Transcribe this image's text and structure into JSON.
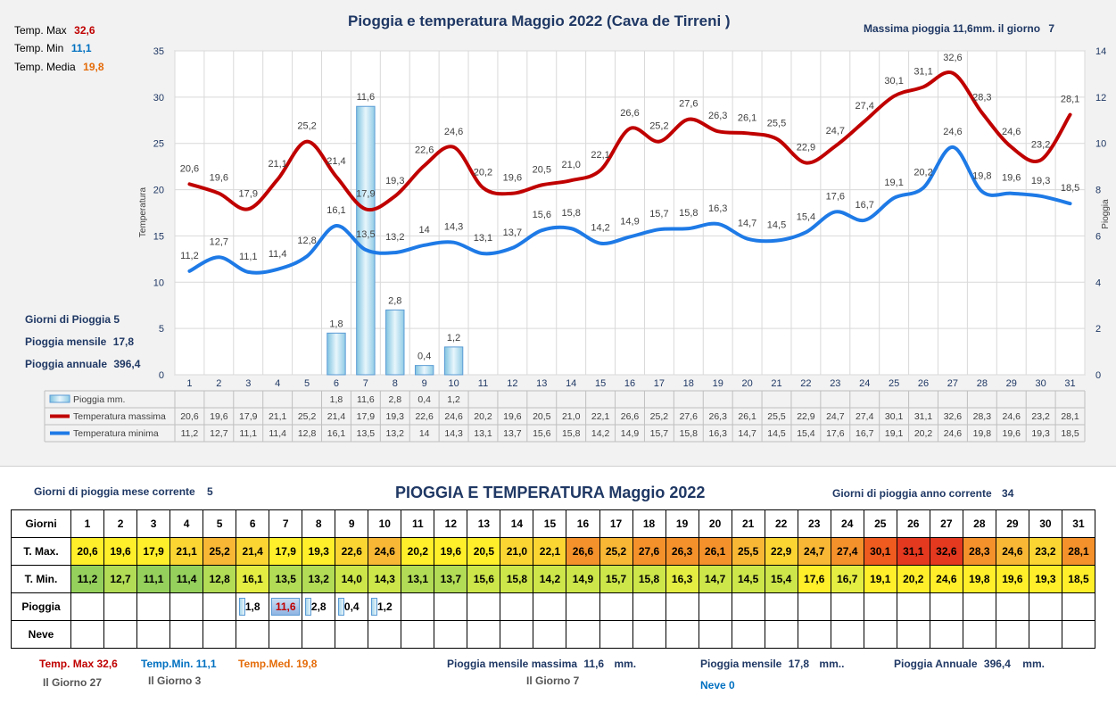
{
  "chart_title": "Pioggia e temperatura Maggio 2022 (Cava de Tirreni )",
  "max_rain_label": "Massima pioggia  11,6mm. il giorno",
  "max_rain_day": "7",
  "top_stats": {
    "max_label": "Temp. Max",
    "max_value": "32,6",
    "min_label": "Temp. Min",
    "min_value": "11,1",
    "med_label": "Temp. Media",
    "med_value": "19,8"
  },
  "left_stats": {
    "rain_days_label": "Giorni di Pioggia",
    "rain_days": "5",
    "monthly_label": "Pioggia mensile",
    "monthly": "17,8",
    "annual_label": "Pioggia annuale",
    "annual": "396,4"
  },
  "colors": {
    "max_line": "#c00000",
    "min_line": "#1e7ae6",
    "title_navy": "#1f3864"
  },
  "chart_data": {
    "type": "line",
    "x": [
      1,
      2,
      3,
      4,
      5,
      6,
      7,
      8,
      9,
      10,
      11,
      12,
      13,
      14,
      15,
      16,
      17,
      18,
      19,
      20,
      21,
      22,
      23,
      24,
      25,
      26,
      27,
      28,
      29,
      30,
      31
    ],
    "ylabel": "Temperatura",
    "y2label": "Pioggia",
    "ylim": [
      0,
      35
    ],
    "y2lim": [
      0,
      14
    ],
    "yticks": [
      "0",
      "5",
      "10",
      "15",
      "20",
      "25",
      "30",
      "35"
    ],
    "y2ticks": [
      "0",
      "2",
      "4",
      "6",
      "8",
      "10",
      "12",
      "14"
    ],
    "grid": true,
    "series": [
      {
        "name": "Pioggia mm.",
        "type": "bar",
        "axis": "right",
        "values": [
          null,
          null,
          null,
          null,
          null,
          1.8,
          11.6,
          2.8,
          0.4,
          1.2,
          null,
          null,
          null,
          null,
          null,
          null,
          null,
          null,
          null,
          null,
          null,
          null,
          null,
          null,
          null,
          null,
          null,
          null,
          null,
          null,
          null
        ],
        "labels": [
          "",
          "",
          "",
          "",
          "",
          "1,8",
          "11,6",
          "2,8",
          "0,4",
          "1,2",
          "",
          "",
          "",
          "",
          "",
          "",
          "",
          "",
          "",
          "",
          "",
          "",
          "",
          "",
          "",
          "",
          "",
          "",
          "",
          "",
          ""
        ]
      },
      {
        "name": "Temperatura massima",
        "type": "line",
        "axis": "left",
        "values": [
          20.6,
          19.6,
          17.9,
          21.1,
          25.2,
          21.4,
          17.9,
          19.3,
          22.6,
          24.6,
          20.2,
          19.6,
          20.5,
          21.0,
          22.1,
          26.6,
          25.2,
          27.6,
          26.3,
          26.1,
          25.5,
          22.9,
          24.7,
          27.4,
          30.1,
          31.1,
          32.6,
          28.3,
          24.6,
          23.2,
          28.1
        ],
        "labels": [
          "20,6",
          "19,6",
          "17,9",
          "21,1",
          "25,2",
          "21,4",
          "17,9",
          "19,3",
          "22,6",
          "24,6",
          "20,2",
          "19,6",
          "20,5",
          "21,0",
          "22,1",
          "26,6",
          "25,2",
          "27,6",
          "26,3",
          "26,1",
          "25,5",
          "22,9",
          "24,7",
          "27,4",
          "30,1",
          "31,1",
          "32,6",
          "28,3",
          "24,6",
          "23,2",
          "28,1"
        ]
      },
      {
        "name": "Temperatura minima",
        "type": "line",
        "axis": "left",
        "values": [
          11.2,
          12.7,
          11.1,
          11.4,
          12.8,
          16.1,
          13.5,
          13.2,
          14.0,
          14.3,
          13.1,
          13.7,
          15.6,
          15.8,
          14.2,
          14.9,
          15.7,
          15.8,
          16.3,
          14.7,
          14.5,
          15.4,
          17.6,
          16.7,
          19.1,
          20.2,
          24.6,
          19.8,
          19.6,
          19.3,
          18.5
        ],
        "labels": [
          "11,2",
          "12,7",
          "11,1",
          "11,4",
          "12,8",
          "16,1",
          "13,5",
          "13,2",
          "14",
          "14,3",
          "13,1",
          "13,7",
          "15,6",
          "15,8",
          "14,2",
          "14,9",
          "15,7",
          "15,8",
          "16,3",
          "14,7",
          "14,5",
          "15,4",
          "17,6",
          "16,7",
          "19,1",
          "20,2",
          "24,6",
          "19,8",
          "19,6",
          "19,3",
          "18,5"
        ]
      }
    ]
  },
  "table": {
    "title": "PIOGGIA E TEMPERATURA Maggio 2022",
    "rain_days_month_label": "Giorni di pioggia mese corrente",
    "rain_days_month": "5",
    "rain_days_year_label": "Giorni di pioggia anno corrente",
    "rain_days_year": "34",
    "row_labels": [
      "Giorni",
      "T. Max.",
      "T. Min.",
      "Pioggia",
      "Neve"
    ],
    "days": [
      "1",
      "2",
      "3",
      "4",
      "5",
      "6",
      "7",
      "8",
      "9",
      "10",
      "11",
      "12",
      "13",
      "14",
      "15",
      "16",
      "17",
      "18",
      "19",
      "20",
      "21",
      "22",
      "23",
      "24",
      "25",
      "26",
      "27",
      "28",
      "29",
      "30",
      "31"
    ],
    "tmax": [
      "20,6",
      "19,6",
      "17,9",
      "21,1",
      "25,2",
      "21,4",
      "17,9",
      "19,3",
      "22,6",
      "24,6",
      "20,2",
      "19,6",
      "20,5",
      "21,0",
      "22,1",
      "26,6",
      "25,2",
      "27,6",
      "26,3",
      "26,1",
      "25,5",
      "22,9",
      "24,7",
      "27,4",
      "30,1",
      "31,1",
      "32,6",
      "28,3",
      "24,6",
      "23,2",
      "28,1"
    ],
    "tmin": [
      "11,2",
      "12,7",
      "11,1",
      "11,4",
      "12,8",
      "16,1",
      "13,5",
      "13,2",
      "14,0",
      "14,3",
      "13,1",
      "13,7",
      "15,6",
      "15,8",
      "14,2",
      "14,9",
      "15,7",
      "15,8",
      "16,3",
      "14,7",
      "14,5",
      "15,4",
      "17,6",
      "16,7",
      "19,1",
      "20,2",
      "24,6",
      "19,8",
      "19,6",
      "19,3",
      "18,5"
    ],
    "rain": [
      "",
      "",
      "",
      "",
      "",
      "1,8",
      "11,6",
      "2,8",
      "0,4",
      "1,2",
      "",
      "",
      "",
      "",
      "",
      "",
      "",
      "",
      "",
      "",
      "",
      "",
      "",
      "",
      "",
      "",
      "",
      "",
      "",
      "",
      ""
    ],
    "rain_values": [
      0,
      0,
      0,
      0,
      0,
      1.8,
      11.6,
      2.8,
      0.4,
      1.2,
      0,
      0,
      0,
      0,
      0,
      0,
      0,
      0,
      0,
      0,
      0,
      0,
      0,
      0,
      0,
      0,
      0,
      0,
      0,
      0,
      0
    ],
    "tmax_values": [
      20.6,
      19.6,
      17.9,
      21.1,
      25.2,
      21.4,
      17.9,
      19.3,
      22.6,
      24.6,
      20.2,
      19.6,
      20.5,
      21.0,
      22.1,
      26.6,
      25.2,
      27.6,
      26.3,
      26.1,
      25.5,
      22.9,
      24.7,
      27.4,
      30.1,
      31.1,
      32.6,
      28.3,
      24.6,
      23.2,
      28.1
    ],
    "tmin_values": [
      11.2,
      12.7,
      11.1,
      11.4,
      12.8,
      16.1,
      13.5,
      13.2,
      14.0,
      14.3,
      13.1,
      13.7,
      15.6,
      15.8,
      14.2,
      14.9,
      15.7,
      15.8,
      16.3,
      14.7,
      14.5,
      15.4,
      17.6,
      16.7,
      19.1,
      20.2,
      24.6,
      19.8,
      19.6,
      19.3,
      18.5
    ]
  },
  "footer": {
    "tmax_label": "Temp. Max",
    "tmax": "32,6",
    "tmax_day": "Il Giorno  27",
    "tmin_label": "Temp.Min.",
    "tmin": "11,1",
    "tmin_day": "Il Giorno  3",
    "tmed_label": "Temp.Med.",
    "tmed": "19,8",
    "max_rain_label": "Pioggia mensile massima",
    "max_rain": "11,6",
    "max_rain_unit": "mm.",
    "max_rain_day": "Il Giorno  7",
    "monthly_label": "Pioggia mensile",
    "monthly": "17,8",
    "monthly_unit": "mm..",
    "annual_label": "Pioggia Annuale",
    "annual": "396,4",
    "annual_unit": "mm.",
    "snow_label": "Neve",
    "snow": "0"
  }
}
